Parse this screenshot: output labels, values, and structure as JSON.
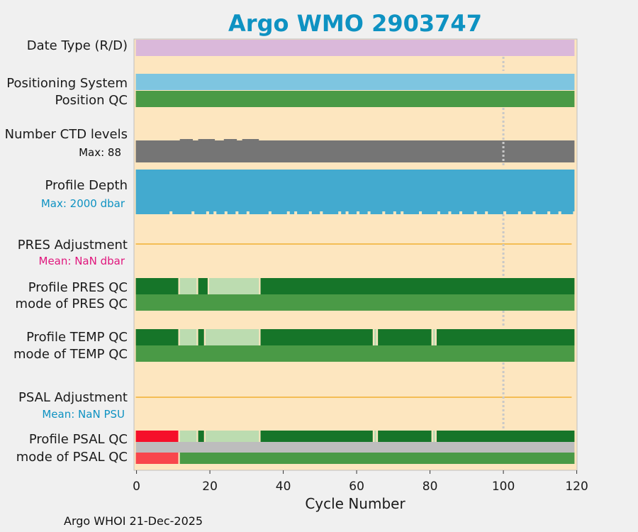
{
  "chart_data": {
    "type": "table",
    "title": "Argo WMO 2903747",
    "xlabel": "Cycle Number",
    "xlim": [
      -0.5,
      119.5
    ],
    "xticks": [
      0,
      20,
      40,
      60,
      80,
      100,
      120
    ],
    "reference_cycle": 100,
    "rows": [
      {
        "label": "Date Type (R/D)",
        "segments": [
          [
            0,
            119,
            "#dab8da"
          ]
        ]
      },
      {
        "label": "Positioning System",
        "segments": [
          [
            0,
            119,
            "#7ec5e0"
          ]
        ]
      },
      {
        "label": "Position QC",
        "segments": [
          [
            0,
            119,
            "#4a9a46"
          ]
        ]
      },
      {
        "label": "Number CTD levels",
        "sub": "Max: 88",
        "max_value": 88,
        "values_note": "near-constant ~88 levels"
      },
      {
        "label": "Profile Depth",
        "sub": "Max: 2000 dbar",
        "max_value": 2000,
        "units": "dbar"
      },
      {
        "label": "PRES Adjustment",
        "sub": "Mean:  NaN dbar",
        "mean": "NaN"
      },
      {
        "label": "Profile PRES QC",
        "segments": [
          [
            0,
            11,
            "#167529"
          ],
          [
            12,
            16,
            "#bcdcb0"
          ],
          [
            17,
            19,
            "#167529"
          ],
          [
            20,
            33,
            "#bcdcb0"
          ],
          [
            34,
            119,
            "#167529"
          ]
        ]
      },
      {
        "label": "mode of PRES QC",
        "segments": [
          [
            0,
            119,
            "#4a9a46"
          ]
        ]
      },
      {
        "label": "Profile TEMP QC",
        "segments": [
          [
            0,
            11,
            "#167529"
          ],
          [
            12,
            16,
            "#bcdcb0"
          ],
          [
            17,
            18,
            "#167529"
          ],
          [
            19,
            33,
            "#bcdcb0"
          ],
          [
            34,
            64,
            "#167529"
          ],
          [
            65,
            65,
            "#bcdcb0"
          ],
          [
            66,
            80,
            "#167529"
          ],
          [
            81,
            81,
            "#bcdcb0"
          ],
          [
            82,
            119,
            "#167529"
          ]
        ]
      },
      {
        "label": "mode of TEMP QC",
        "segments": [
          [
            0,
            119,
            "#4a9a46"
          ]
        ]
      },
      {
        "label": "PSAL Adjustment",
        "sub": "Mean:  NaN PSU",
        "mean": "NaN"
      },
      {
        "label": "Profile PSAL QC",
        "segments": [
          [
            0,
            11,
            "#f5102a"
          ],
          [
            12,
            16,
            "#bcdcb0"
          ],
          [
            17,
            18,
            "#167529"
          ],
          [
            19,
            33,
            "#bcdcb0"
          ],
          [
            34,
            64,
            "#167529"
          ],
          [
            65,
            65,
            "#bcdcb0"
          ],
          [
            66,
            80,
            "#167529"
          ],
          [
            81,
            81,
            "#bcdcb0"
          ],
          [
            82,
            119,
            "#167529"
          ]
        ]
      },
      {
        "label": "mode of PSAL QC",
        "segments": [
          [
            0,
            11,
            "#f8464c"
          ],
          [
            12,
            119,
            "#4a9a46"
          ]
        ]
      }
    ],
    "profile_depth_gaps": [
      9,
      15,
      19,
      21,
      24,
      27,
      30,
      36,
      41,
      43,
      47,
      50,
      55,
      57,
      60,
      63,
      67,
      70,
      72,
      77,
      82,
      85,
      88,
      92,
      95,
      100,
      104,
      108,
      112,
      115,
      119
    ],
    "ctd_bump_cycles": [
      12,
      13,
      14,
      17,
      18,
      19,
      20,
      24,
      25,
      26,
      29,
      30,
      31,
      32
    ]
  },
  "colors": {
    "plot_bg": "#fde6bf",
    "frame_bg": "#f0f0f0",
    "title": "#0e92c2",
    "depth_sub": "#0e92c2",
    "pres_sub": "#e0177d",
    "psal_sub": "#0e92c2",
    "ctd_bar": "#757575",
    "depth_bar": "#43aacf",
    "adjust_line": "#f4bd55",
    "psal_band": "#bdbdbd",
    "ref_line": "#c8c8c8"
  },
  "footer": "Argo WHOI 21-Dec-2025"
}
